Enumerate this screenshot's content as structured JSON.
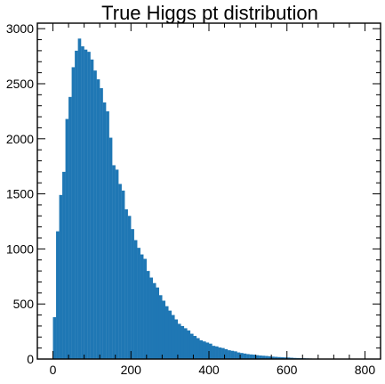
{
  "chart_data": {
    "type": "bar",
    "title": "True Higgs pt distribution",
    "xlabel": "",
    "ylabel": "",
    "xlim": [
      -40,
      840
    ],
    "ylim": [
      0,
      3050
    ],
    "bin_width": 8,
    "x_start": 0,
    "values": [
      380,
      1160,
      1490,
      1700,
      2180,
      2380,
      2650,
      2800,
      2910,
      2840,
      2810,
      2790,
      2720,
      2620,
      2540,
      2460,
      2330,
      2250,
      2010,
      1760,
      1720,
      1590,
      1530,
      1360,
      1300,
      1180,
      1080,
      1010,
      950,
      910,
      800,
      740,
      690,
      650,
      580,
      530,
      480,
      440,
      400,
      360,
      320,
      300,
      280,
      260,
      230,
      210,
      190,
      170,
      160,
      150,
      140,
      120,
      115,
      105,
      100,
      90,
      80,
      75,
      70,
      60,
      55,
      50,
      45,
      42,
      40,
      35,
      32,
      30,
      28,
      25,
      22,
      20,
      18,
      16,
      15,
      14,
      12,
      10,
      9,
      8,
      7,
      6,
      5,
      4,
      3,
      2,
      2,
      1,
      1,
      1,
      0,
      0,
      0,
      0,
      0,
      0,
      0,
      0,
      0,
      0
    ],
    "x_ticks": [
      "0",
      "200",
      "400",
      "600",
      "800"
    ],
    "y_ticks": [
      "0",
      "500",
      "1000",
      "1500",
      "2000",
      "2500",
      "3000"
    ],
    "grid": false,
    "color": "#1f77b4"
  }
}
